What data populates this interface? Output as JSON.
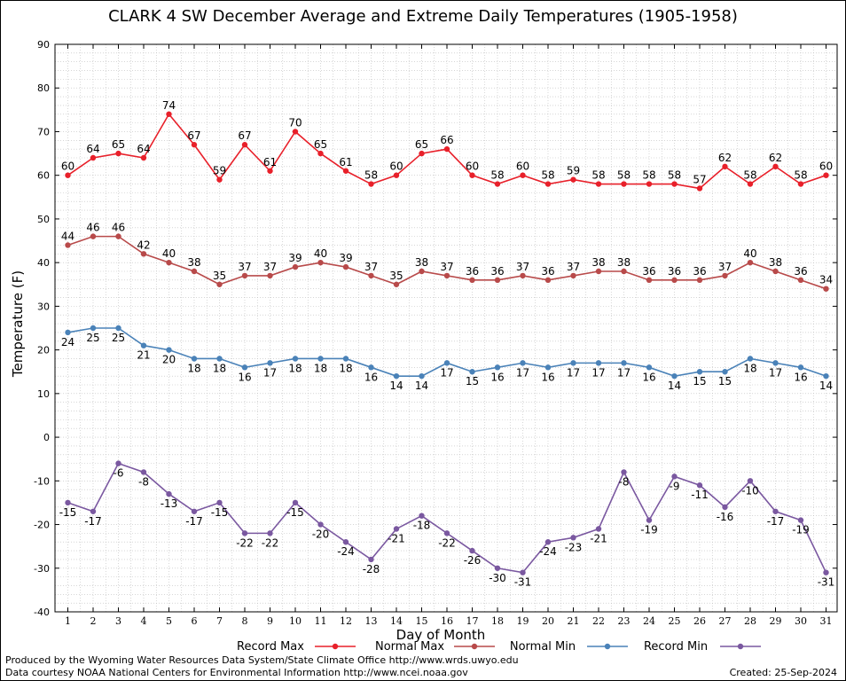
{
  "chart_data": {
    "type": "line",
    "title": "CLARK 4 SW December Average and Extreme Daily Temperatures (1905-1958)",
    "xlabel": "Day of Month",
    "ylabel": "Temperature (F)",
    "ylim": [
      -40,
      90
    ],
    "yticks": [
      -40,
      -30,
      -20,
      -10,
      0,
      10,
      20,
      30,
      40,
      50,
      60,
      70,
      80,
      90
    ],
    "x": [
      1,
      2,
      3,
      4,
      5,
      6,
      7,
      8,
      9,
      10,
      11,
      12,
      13,
      14,
      15,
      16,
      17,
      18,
      19,
      20,
      21,
      22,
      23,
      24,
      25,
      26,
      27,
      28,
      29,
      30,
      31
    ],
    "grid": true,
    "legend_position": "bottom",
    "series": [
      {
        "name": "Record Max",
        "color": "#e8202a",
        "values": [
          60,
          64,
          65,
          64,
          74,
          67,
          59,
          67,
          61,
          70,
          65,
          61,
          58,
          60,
          65,
          66,
          60,
          58,
          60,
          58,
          59,
          58,
          58,
          58,
          58,
          57,
          62,
          58,
          62,
          58,
          60
        ]
      },
      {
        "name": "Normal Max",
        "color": "#b84a4a",
        "values": [
          44,
          46,
          46,
          42,
          40,
          38,
          35,
          37,
          37,
          39,
          40,
          39,
          37,
          35,
          38,
          37,
          36,
          36,
          37,
          36,
          37,
          38,
          38,
          36,
          36,
          36,
          37,
          40,
          38,
          36,
          34
        ]
      },
      {
        "name": "Normal Min",
        "color": "#4a82b8",
        "values": [
          24,
          25,
          25,
          21,
          20,
          18,
          18,
          16,
          17,
          18,
          18,
          18,
          16,
          14,
          14,
          17,
          15,
          16,
          17,
          16,
          17,
          17,
          17,
          16,
          14,
          15,
          15,
          18,
          17,
          16,
          14
        ]
      },
      {
        "name": "Record Min",
        "color": "#7a58a0",
        "values": [
          -15,
          -17,
          -6,
          -8,
          -13,
          -17,
          -15,
          -22,
          -22,
          -15,
          -20,
          -24,
          -28,
          -21,
          -18,
          -22,
          -26,
          -30,
          -31,
          -24,
          -23,
          -21,
          -8,
          -19,
          -9,
          -11,
          -16,
          -10,
          -17,
          -19,
          -31
        ]
      }
    ]
  },
  "footer": {
    "line1": "Produced by the Wyoming Water Resources Data System/State Climate Office http://www.wrds.uwyo.edu",
    "line2": "Data courtesy NOAA National Centers for Environmental Information http://www.ncei.noaa.gov",
    "created": "Created:  25-Sep-2024"
  }
}
